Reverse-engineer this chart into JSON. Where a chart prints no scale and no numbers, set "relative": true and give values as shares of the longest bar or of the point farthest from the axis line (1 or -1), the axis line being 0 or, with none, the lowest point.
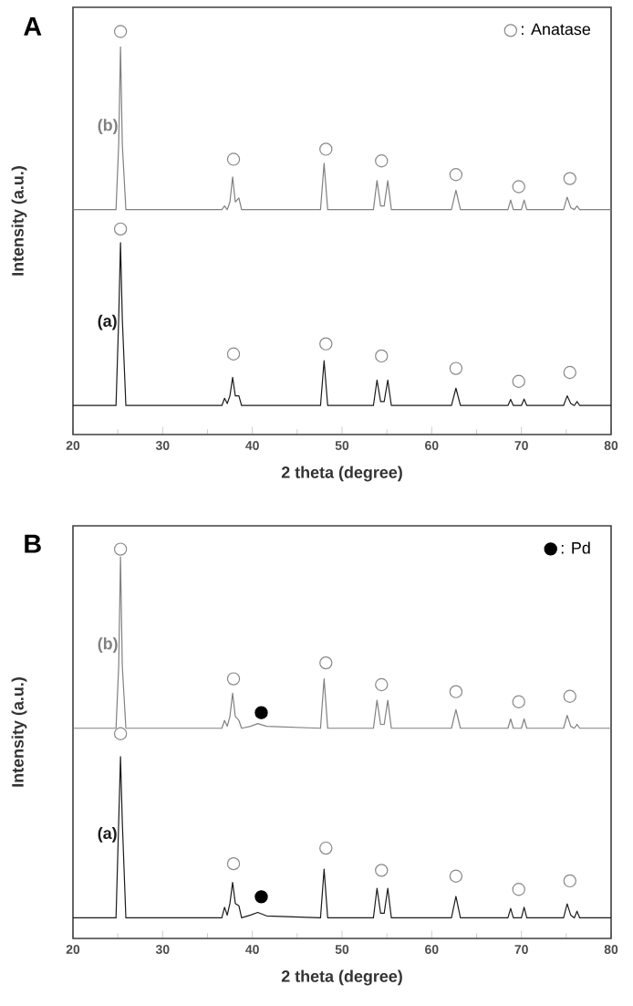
{
  "chart_data": [
    {
      "type": "line",
      "title": "A",
      "xlabel": "2 theta (degree)",
      "ylabel": "Intensity (a.u.)",
      "relative": true,
      "xlim": [
        20,
        80
      ],
      "xticks": [
        20,
        30,
        40,
        50,
        60,
        70,
        80
      ],
      "legend": "top right",
      "series": [
        {
          "name": "(b)",
          "color": "#808080",
          "x": [
            20,
            24.8,
            25.1,
            25.3,
            25.5,
            25.9,
            36.6,
            36.9,
            37.2,
            37.5,
            37.8,
            38.1,
            38.5,
            38.8,
            47.6,
            48.0,
            48.4,
            53.5,
            53.9,
            54.3,
            54.7,
            55.1,
            55.5,
            62.2,
            62.7,
            63.2,
            68.5,
            68.8,
            69.1,
            70.0,
            70.3,
            70.6,
            74.7,
            75.1,
            75.5,
            75.9,
            76.2,
            76.5,
            80
          ],
          "values": [
            0.558,
            0.558,
            0.721,
            0.962,
            0.721,
            0.558,
            0.558,
            0.567,
            0.558,
            0.577,
            0.639,
            0.577,
            0.587,
            0.558,
            0.558,
            0.673,
            0.558,
            0.558,
            0.63,
            0.567,
            0.567,
            0.63,
            0.558,
            0.558,
            0.606,
            0.558,
            0.558,
            0.582,
            0.558,
            0.558,
            0.582,
            0.558,
            0.558,
            0.589,
            0.563,
            0.558,
            0.567,
            0.558,
            0.558
          ]
        },
        {
          "name": "(a)",
          "color": "#1a1a1a",
          "x": [
            20,
            24.8,
            25.1,
            25.3,
            25.5,
            25.9,
            36.6,
            36.9,
            37.2,
            37.5,
            37.8,
            38.1,
            38.5,
            38.8,
            47.6,
            48.0,
            48.4,
            53.5,
            53.9,
            54.3,
            54.7,
            55.1,
            55.5,
            62.2,
            62.7,
            63.2,
            68.5,
            68.8,
            69.1,
            70.0,
            70.3,
            70.6,
            74.7,
            75.1,
            75.5,
            75.9,
            76.2,
            76.5,
            80
          ],
          "values": [
            0.072,
            0.072,
            0.288,
            0.476,
            0.288,
            0.072,
            0.072,
            0.09,
            0.077,
            0.096,
            0.142,
            0.096,
            0.096,
            0.072,
            0.072,
            0.183,
            0.072,
            0.072,
            0.135,
            0.082,
            0.082,
            0.135,
            0.072,
            0.072,
            0.115,
            0.072,
            0.072,
            0.087,
            0.072,
            0.072,
            0.088,
            0.072,
            0.072,
            0.096,
            0.077,
            0.072,
            0.082,
            0.072,
            0.072
          ]
        },
        {
          "name": ": Anatase",
          "type": "scatter",
          "marker": "circle",
          "color": "#888888",
          "x": [
            25.3,
            37.9,
            48.2,
            54.4,
            62.7,
            69.7,
            75.4,
            25.3,
            37.9,
            48.2,
            54.4,
            62.7,
            69.7,
            75.4
          ],
          "values": [
            1.0,
            0.683,
            0.708,
            0.679,
            0.645,
            0.615,
            0.635,
            0.51,
            0.2,
            0.225,
            0.195,
            0.164,
            0.132,
            0.154
          ]
        }
      ]
    },
    {
      "type": "line",
      "title": "B",
      "xlabel": "2 theta (degree)",
      "ylabel": "Intensity (a.u.)",
      "relative": true,
      "xlim": [
        20,
        80
      ],
      "xticks": [
        20,
        30,
        40,
        50,
        60,
        70,
        80
      ],
      "legend": "top right",
      "series": [
        {
          "name": "(b)",
          "color": "#808080",
          "x": [
            20,
            24.8,
            25.1,
            25.3,
            25.5,
            25.9,
            36.6,
            36.9,
            37.2,
            37.5,
            37.8,
            38.1,
            38.5,
            38.8,
            39.8,
            40.6,
            41.6,
            47.6,
            48.0,
            48.4,
            53.5,
            53.9,
            54.3,
            54.7,
            55.1,
            55.5,
            62.2,
            62.7,
            63.2,
            68.5,
            68.8,
            69.1,
            70.0,
            70.3,
            70.6,
            74.7,
            75.1,
            75.5,
            75.9,
            76.2,
            76.5,
            80
          ],
          "values": [
            0.54,
            0.54,
            0.7,
            0.98,
            0.7,
            0.54,
            0.54,
            0.56,
            0.545,
            0.57,
            0.63,
            0.57,
            0.56,
            0.54,
            0.545,
            0.552,
            0.545,
            0.54,
            0.667,
            0.54,
            0.54,
            0.612,
            0.55,
            0.55,
            0.612,
            0.54,
            0.54,
            0.588,
            0.54,
            0.54,
            0.564,
            0.54,
            0.54,
            0.564,
            0.54,
            0.54,
            0.573,
            0.545,
            0.54,
            0.55,
            0.54,
            0.54
          ]
        },
        {
          "name": "(a)",
          "color": "#1a1a1a",
          "x": [
            20,
            24.8,
            25.1,
            25.3,
            25.5,
            25.9,
            36.6,
            36.9,
            37.2,
            37.5,
            37.8,
            38.1,
            38.5,
            38.8,
            39.8,
            40.6,
            41.6,
            47.6,
            48.0,
            48.4,
            53.5,
            53.9,
            54.3,
            54.7,
            55.1,
            55.5,
            62.2,
            62.7,
            63.2,
            68.5,
            68.8,
            69.1,
            70.0,
            70.3,
            70.6,
            74.7,
            75.1,
            75.5,
            75.9,
            76.2,
            76.5,
            80
          ],
          "values": [
            0.053,
            0.053,
            0.3,
            0.467,
            0.3,
            0.053,
            0.053,
            0.08,
            0.06,
            0.09,
            0.144,
            0.09,
            0.084,
            0.053,
            0.06,
            0.067,
            0.058,
            0.053,
            0.178,
            0.053,
            0.053,
            0.129,
            0.065,
            0.065,
            0.129,
            0.053,
            0.053,
            0.108,
            0.053,
            0.053,
            0.077,
            0.053,
            0.053,
            0.08,
            0.053,
            0.053,
            0.089,
            0.06,
            0.053,
            0.07,
            0.053,
            0.053
          ]
        },
        {
          "type": "scatter",
          "marker": "circle",
          "color": "#888888",
          "x": [
            25.3,
            37.9,
            48.2,
            54.4,
            62.7,
            69.7,
            75.4,
            25.3,
            37.9,
            48.2,
            54.4,
            62.7,
            69.7,
            75.4
          ],
          "values": [
            1.0,
            0.667,
            0.708,
            0.652,
            0.634,
            0.608,
            0.622,
            0.526,
            0.192,
            0.232,
            0.175,
            0.16,
            0.126,
            0.148
          ]
        },
        {
          "name": ": Pd",
          "type": "scatter",
          "marker": "circle",
          "color": "#000000",
          "x": [
            41.0,
            41.0
          ],
          "values": [
            0.58,
            0.107
          ]
        }
      ]
    }
  ]
}
